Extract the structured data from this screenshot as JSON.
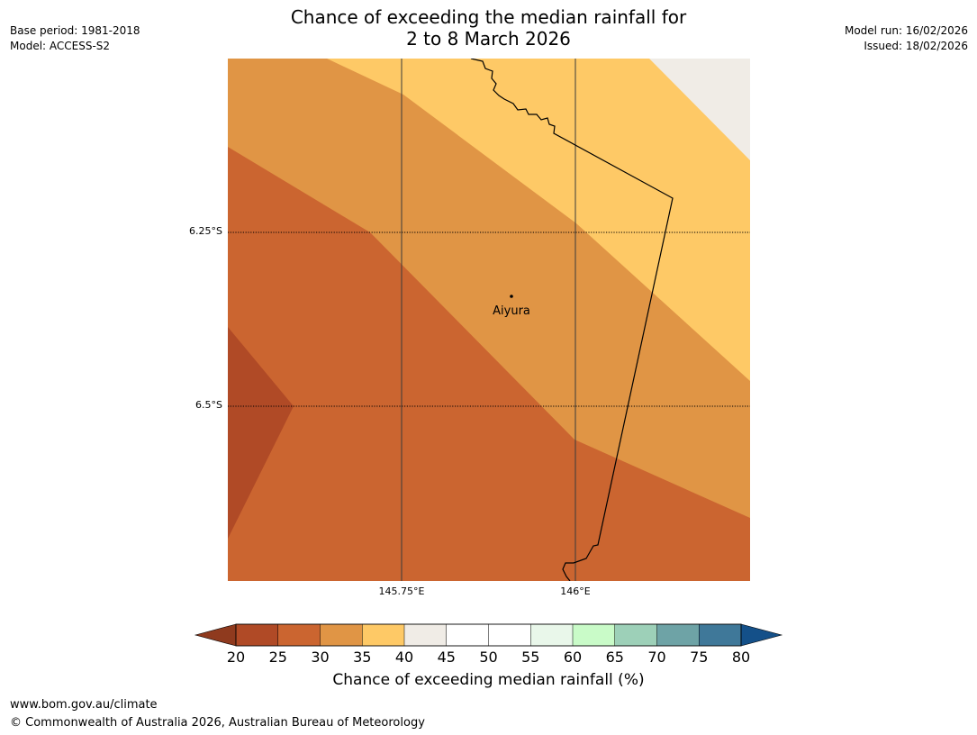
{
  "title": {
    "line1": "Chance of exceeding the median rainfall for",
    "line2": "2 to 8 March 2026"
  },
  "meta": {
    "base_period": "Base period: 1981-2018",
    "model": "Model: ACCESS-S2",
    "model_run": "Model run: 16/02/2026",
    "issued": "Issued: 18/02/2026"
  },
  "map": {
    "place": "Aiyura",
    "lat_labels": [
      "6.25°S",
      "6.5°S"
    ],
    "lon_labels": [
      "145.75°E",
      "146°E"
    ],
    "colors": {
      "c20_25": "#b04a26",
      "c25_30": "#cb6530",
      "c30_35": "#e09545",
      "c35_40": "#fec966",
      "c40_45": "#f0ece6"
    }
  },
  "colorbar": {
    "ticks": [
      "20",
      "25",
      "30",
      "35",
      "40",
      "45",
      "50",
      "55",
      "60",
      "65",
      "70",
      "75",
      "80"
    ],
    "colors": [
      "#b04a26",
      "#cb6530",
      "#e09545",
      "#fec966",
      "#f0ece6",
      "#ffffff",
      "#ffffff",
      "#e9f7ea",
      "#c9fbc8",
      "#9dd0b8",
      "#6ea3a6",
      "#3f7899"
    ],
    "under_color": "#8f3a1e",
    "over_color": "#145089",
    "label": "Chance of exceeding median rainfall (%)"
  },
  "footer": {
    "url": "www.bom.gov.au/climate",
    "copyright": "© Commonwealth of Australia 2026, Australian Bureau of Meteorology"
  }
}
